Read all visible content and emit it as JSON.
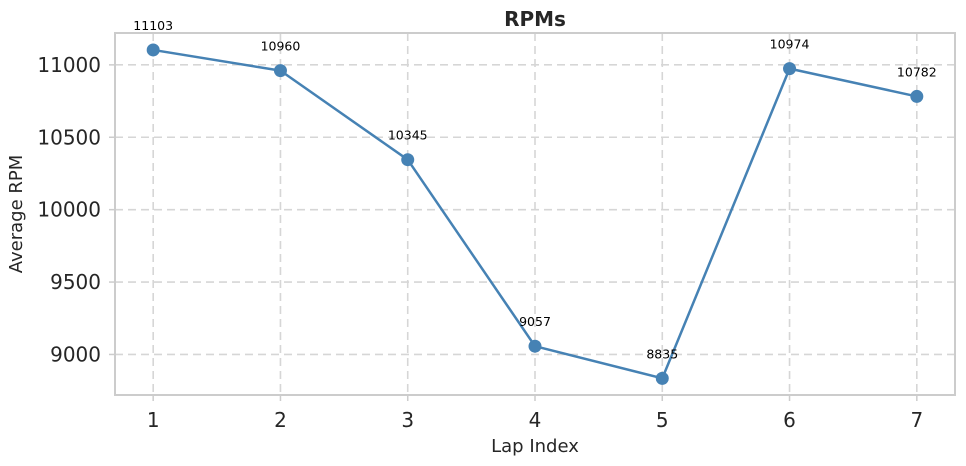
{
  "chart_data": {
    "type": "line",
    "title": "RPMs",
    "xlabel": "Lap Index",
    "ylabel": "Average RPM",
    "x": [
      1,
      2,
      3,
      4,
      5,
      6,
      7
    ],
    "series": [
      {
        "values": [
          11103,
          10960,
          10345,
          9057,
          8835,
          10974,
          10782
        ]
      }
    ],
    "data_labels": [
      "11103",
      "10960",
      "10345",
      "9057",
      "8835",
      "10974",
      "10782"
    ],
    "xticks": [
      "1",
      "2",
      "3",
      "4",
      "5",
      "6",
      "7"
    ],
    "yticks": [
      9000,
      9500,
      10000,
      10500,
      11000
    ],
    "ytick_labels": [
      "9000",
      "9500",
      "10000",
      "10500",
      "11000"
    ],
    "xlim": [
      0.7,
      7.3
    ],
    "ylim": [
      8720,
      11220
    ],
    "grid": true,
    "line_color": "#4682b4"
  }
}
